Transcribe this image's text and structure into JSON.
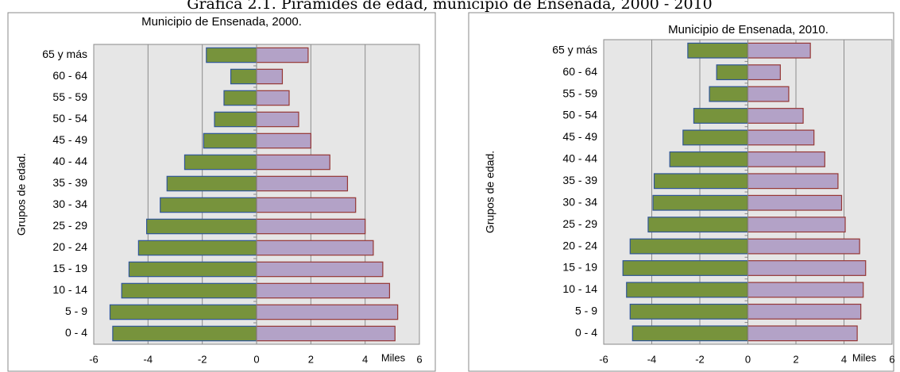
{
  "title": "Gráfica 2.1. Pirámides de edad, municipio de Ensenada, 2000 - 2010",
  "chart_data": [
    {
      "type": "pyramid",
      "title": "Municipio de Ensenada, 2000.",
      "x_label": "Miles",
      "y_label": "Grupos de edad.",
      "categories": [
        "0 -  4",
        "5 -  9",
        "10 - 14",
        "15 - 19",
        "20 - 24",
        "25 - 29",
        "30 - 34",
        "35 - 39",
        "40 - 44",
        "45 - 49",
        "50 - 54",
        "55 - 59",
        "60 - 64",
        "65 y más"
      ],
      "series": [
        {
          "color": "#77933c",
          "values": [
            -5.3,
            -5.4,
            -4.97,
            -4.7,
            -4.35,
            -4.05,
            -3.55,
            -3.3,
            -2.65,
            -1.95,
            -1.55,
            -1.2,
            -0.95,
            -1.85
          ]
        },
        {
          "color": "#b3a2c7",
          "values": [
            5.1,
            5.2,
            4.9,
            4.65,
            4.3,
            4.0,
            3.65,
            3.35,
            2.7,
            2.0,
            1.55,
            1.2,
            0.95,
            1.9
          ]
        }
      ],
      "xlim": [
        -6,
        6
      ],
      "xticks": [
        -6,
        -4,
        -2,
        0,
        2,
        4,
        6
      ],
      "grid": true
    },
    {
      "type": "pyramid",
      "title": "Municipio de Ensenada, 2010.",
      "x_label": "Miles",
      "y_label": "Grupos de edad.",
      "categories": [
        "0 -  4",
        "5 -  9",
        "10 - 14",
        "15 - 19",
        "20 - 24",
        "25 - 29",
        "30 - 34",
        "35 - 39",
        "40 - 44",
        "45 - 49",
        "50 - 54",
        "55 - 59",
        "60 - 64",
        "65 y más"
      ],
      "series": [
        {
          "color": "#77933c",
          "values": [
            -4.8,
            -4.9,
            -5.05,
            -5.2,
            -4.9,
            -4.15,
            -3.95,
            -3.9,
            -3.25,
            -2.7,
            -2.25,
            -1.6,
            -1.3,
            -2.5
          ]
        },
        {
          "color": "#b3a2c7",
          "values": [
            4.55,
            4.7,
            4.8,
            4.9,
            4.65,
            4.05,
            3.9,
            3.75,
            3.2,
            2.75,
            2.3,
            1.7,
            1.35,
            2.6
          ]
        }
      ],
      "xlim": [
        -6,
        6
      ],
      "xticks": [
        -6,
        -4,
        -2,
        0,
        2,
        4,
        6
      ],
      "grid": true
    }
  ]
}
